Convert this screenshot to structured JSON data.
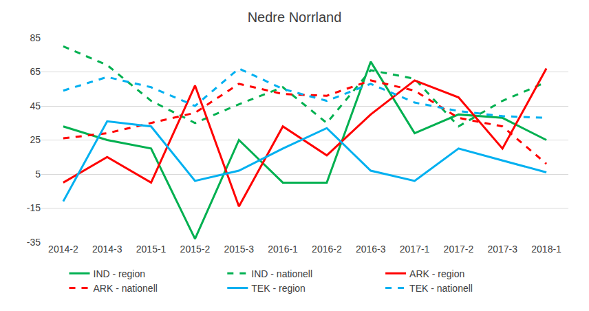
{
  "chart_data": {
    "type": "line",
    "title": "Nedre Norrland",
    "categories": [
      "2014-2",
      "2014-3",
      "2015-1",
      "2015-2",
      "2015-3",
      "2016-1",
      "2016-2",
      "2016-3",
      "2017-1",
      "2017-2",
      "2017-3",
      "2018-1"
    ],
    "series": [
      {
        "name": "IND - region",
        "color": "#00b050",
        "line_style": "solid",
        "values": [
          33,
          25,
          20,
          -33,
          25,
          0,
          0,
          71,
          29,
          40,
          38,
          25
        ]
      },
      {
        "name": "IND - nationell",
        "color": "#00b050",
        "line_style": "dash",
        "values": [
          80,
          69,
          48,
          35,
          46,
          56,
          35,
          66,
          61,
          33,
          48,
          59
        ]
      },
      {
        "name": "ARK - region",
        "color": "#ff0000",
        "line_style": "solid",
        "values": [
          0,
          15,
          0,
          57,
          -14,
          33,
          16,
          40,
          60,
          50,
          20,
          67
        ]
      },
      {
        "name": "ARK - nationell",
        "color": "#ff0000",
        "line_style": "dash",
        "values": [
          26,
          29,
          35,
          41,
          58,
          52,
          51,
          60,
          54,
          38,
          33,
          11
        ]
      },
      {
        "name": "TEK - region",
        "color": "#00b0f0",
        "line_style": "solid",
        "values": [
          -11,
          36,
          33,
          1,
          7,
          20,
          32,
          7,
          1,
          20,
          13,
          6
        ]
      },
      {
        "name": "TEK - nationell",
        "color": "#00b0f0",
        "line_style": "dash",
        "values": [
          54,
          62,
          56,
          45,
          67,
          55,
          48,
          58,
          47,
          42,
          39,
          38
        ]
      }
    ],
    "ylim": [
      -35,
      85
    ],
    "yticks": [
      -35,
      -15,
      5,
      25,
      45,
      65,
      85
    ],
    "grid": true,
    "legend": "bottom"
  }
}
